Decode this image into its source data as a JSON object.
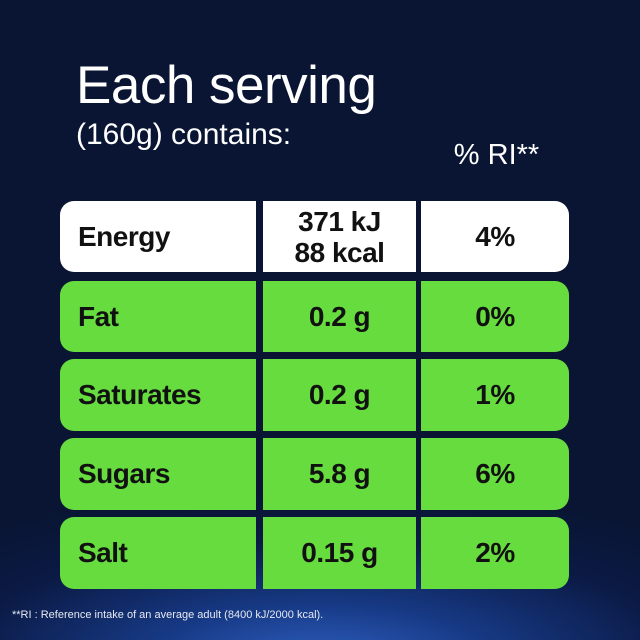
{
  "heading": {
    "title": "Each serving",
    "subtitle": "(160g) contains:",
    "ri_header": "% RI**"
  },
  "rows": [
    {
      "name": "Energy",
      "amount_line1": "371 kJ",
      "amount_line2": "88 kcal",
      "ri": "4%"
    },
    {
      "name": "Fat",
      "amount": "0.2 g",
      "ri": "0%"
    },
    {
      "name": "Saturates",
      "amount": "0.2 g",
      "ri": "1%"
    },
    {
      "name": "Sugars",
      "amount": "5.8 g",
      "ri": "6%"
    },
    {
      "name": "Salt",
      "amount": "0.15 g",
      "ri": "2%"
    }
  ],
  "footnote": "**RI : Reference intake of an average adult (8400 kJ/2000 kcal).",
  "colors": {
    "background": "#0b1a45",
    "energy_row": "#ffffff",
    "nutrient_row": "#67dc3f",
    "text": "#111111"
  }
}
